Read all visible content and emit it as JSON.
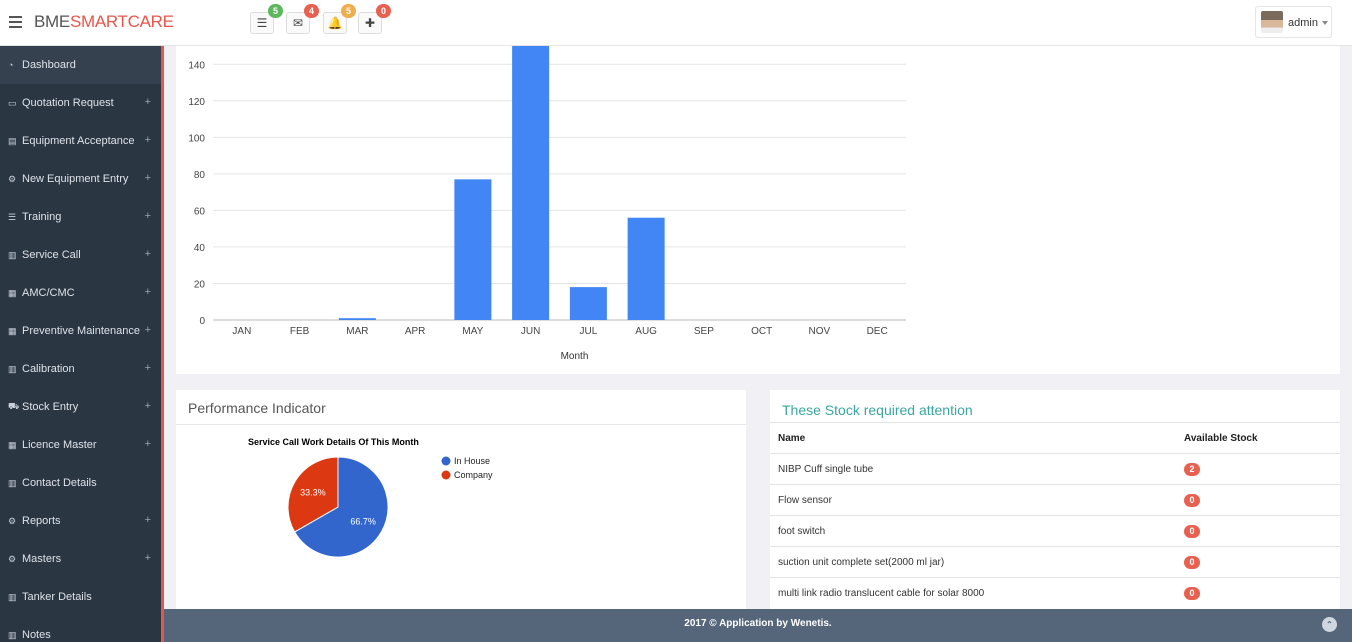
{
  "brand": {
    "part1": "BME",
    "part2": "SMARTCARE"
  },
  "notifications": [
    {
      "icon": "list-icon",
      "glyph": "☰",
      "count": "5",
      "color": "#5cb85c"
    },
    {
      "icon": "envelope-icon",
      "glyph": "✉",
      "count": "4",
      "color": "#e8604f"
    },
    {
      "icon": "bell-icon",
      "glyph": "🔔",
      "count": "5",
      "color": "#f0ad4e"
    },
    {
      "icon": "plus-square-icon",
      "glyph": "✚",
      "count": "0",
      "color": "#e8604f"
    }
  ],
  "user": {
    "name": "admin"
  },
  "sidebar": {
    "items": [
      {
        "label": "Dashboard",
        "icon": "dashboard-icon",
        "glyph": "◔",
        "expandable": false,
        "active": true
      },
      {
        "label": "Quotation Request",
        "icon": "laptop-icon",
        "glyph": "▭",
        "expandable": true
      },
      {
        "label": "Equipment Acceptance",
        "icon": "book-icon",
        "glyph": "▤",
        "expandable": true
      },
      {
        "label": "New Equipment Entry",
        "icon": "cogs-icon",
        "glyph": "⚙",
        "expandable": true
      },
      {
        "label": "Training",
        "icon": "list-icon",
        "glyph": "☰",
        "expandable": true
      },
      {
        "label": "Service Call",
        "icon": "bar-chart-icon",
        "glyph": "▥",
        "expandable": true
      },
      {
        "label": "AMC/CMC",
        "icon": "grid-icon",
        "glyph": "▦",
        "expandable": true
      },
      {
        "label": "Preventive Maintenance",
        "icon": "grid-icon",
        "glyph": "▦",
        "expandable": true
      },
      {
        "label": "Calibration",
        "icon": "bar-chart-icon",
        "glyph": "▥",
        "expandable": true
      },
      {
        "label": "Stock Entry",
        "icon": "cart-icon",
        "glyph": "⛟",
        "expandable": true
      },
      {
        "label": "Licence Master",
        "icon": "grid-icon",
        "glyph": "▦",
        "expandable": true
      },
      {
        "label": "Contact Details",
        "icon": "bar-chart-icon",
        "glyph": "▥",
        "expandable": false
      },
      {
        "label": "Reports",
        "icon": "cogs-icon",
        "glyph": "⚙",
        "expandable": true
      },
      {
        "label": "Masters",
        "icon": "cogs-icon",
        "glyph": "⚙",
        "expandable": true
      },
      {
        "label": "Tanker Details",
        "icon": "bar-chart-icon",
        "glyph": "▥",
        "expandable": false
      },
      {
        "label": "Notes",
        "icon": "bar-chart-icon",
        "glyph": "▥",
        "expandable": false
      }
    ],
    "expand_glyph": "+"
  },
  "chart_data": [
    {
      "type": "bar",
      "categories": [
        "JAN",
        "FEB",
        "MAR",
        "APR",
        "MAY",
        "JUN",
        "JUL",
        "AUG",
        "SEP",
        "OCT",
        "NOV",
        "DEC"
      ],
      "values": [
        0,
        0,
        1,
        0,
        77,
        150,
        18,
        56,
        0,
        0,
        0,
        0
      ],
      "xlabel": "Month",
      "yticks": [
        0,
        20,
        40,
        60,
        80,
        100,
        120,
        140
      ],
      "ylim": [
        0,
        150
      ],
      "grid": true,
      "color": "#4285f4"
    },
    {
      "type": "pie",
      "title": "Service Call Work Details Of This Month",
      "slices": [
        {
          "label": "In House",
          "value": 66.7,
          "display": "66.7%",
          "color": "#3366cc"
        },
        {
          "label": "Company",
          "value": 33.3,
          "display": "33.3%",
          "color": "#dc3912"
        }
      ],
      "legend": "right"
    }
  ],
  "performance": {
    "title": "Performance Indicator"
  },
  "stock": {
    "title": "These Stock required attention",
    "columns": [
      "Name",
      "Available Stock"
    ],
    "rows": [
      {
        "name": "NIBP Cuff single tube",
        "stock": "2"
      },
      {
        "name": "Flow sensor",
        "stock": "0"
      },
      {
        "name": "foot switch",
        "stock": "0"
      },
      {
        "name": "suction unit complete set(2000 ml jar)",
        "stock": "0"
      },
      {
        "name": "multi link radio translucent cable for solar 8000",
        "stock": "0"
      }
    ]
  },
  "footer": {
    "text": "2017 © Application by Wenetis.",
    "to_top_glyph": "⌃"
  }
}
